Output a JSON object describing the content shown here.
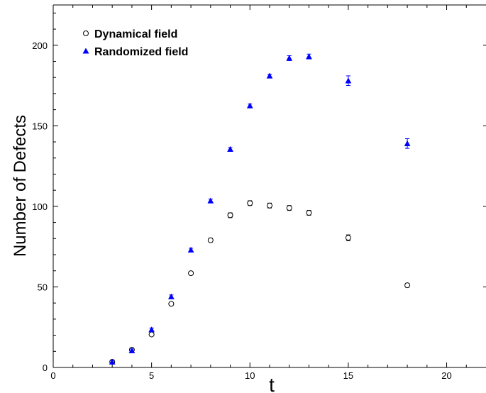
{
  "chart_data": {
    "type": "scatter",
    "title": "",
    "xlabel": "t",
    "ylabel": "Number of Defects",
    "xlim": [
      0,
      22
    ],
    "ylim": [
      0,
      225
    ],
    "x_ticks": [
      0,
      5,
      10,
      15,
      20
    ],
    "y_ticks": [
      0,
      50,
      100,
      150,
      200
    ],
    "grid": false,
    "legend_position": "top-left",
    "series": [
      {
        "name": "Dynamical field",
        "marker": "open-circle",
        "color": "#000000",
        "points": [
          {
            "x": 3,
            "y": 3.5,
            "err": 0.8
          },
          {
            "x": 4,
            "y": 11,
            "err": 1
          },
          {
            "x": 5,
            "y": 20.5,
            "err": 1
          },
          {
            "x": 6,
            "y": 39.5,
            "err": 1
          },
          {
            "x": 7,
            "y": 58.5,
            "err": 1
          },
          {
            "x": 8,
            "y": 79,
            "err": 1.2
          },
          {
            "x": 9,
            "y": 94.5,
            "err": 1.5
          },
          {
            "x": 10,
            "y": 102,
            "err": 1.5
          },
          {
            "x": 11,
            "y": 100.5,
            "err": 1.5
          },
          {
            "x": 12,
            "y": 99,
            "err": 1.5
          },
          {
            "x": 13,
            "y": 96,
            "err": 1.5
          },
          {
            "x": 15,
            "y": 80.5,
            "err": 1.8
          },
          {
            "x": 18,
            "y": 51,
            "err": 1.2
          }
        ]
      },
      {
        "name": "Randomized field",
        "marker": "filled-triangle",
        "color": "#0000ff",
        "points": [
          {
            "x": 3,
            "y": 3.5,
            "err": 0.8
          },
          {
            "x": 4,
            "y": 10.5,
            "err": 1
          },
          {
            "x": 5,
            "y": 23.5,
            "err": 1
          },
          {
            "x": 6,
            "y": 44,
            "err": 1
          },
          {
            "x": 7,
            "y": 73,
            "err": 1
          },
          {
            "x": 8,
            "y": 103.5,
            "err": 1
          },
          {
            "x": 9,
            "y": 135.5,
            "err": 1
          },
          {
            "x": 10,
            "y": 162.5,
            "err": 1
          },
          {
            "x": 11,
            "y": 181,
            "err": 1
          },
          {
            "x": 12,
            "y": 192,
            "err": 1.5
          },
          {
            "x": 13,
            "y": 193,
            "err": 1.5
          },
          {
            "x": 15,
            "y": 178,
            "err": 3
          },
          {
            "x": 18,
            "y": 139,
            "err": 3
          }
        ]
      }
    ]
  }
}
